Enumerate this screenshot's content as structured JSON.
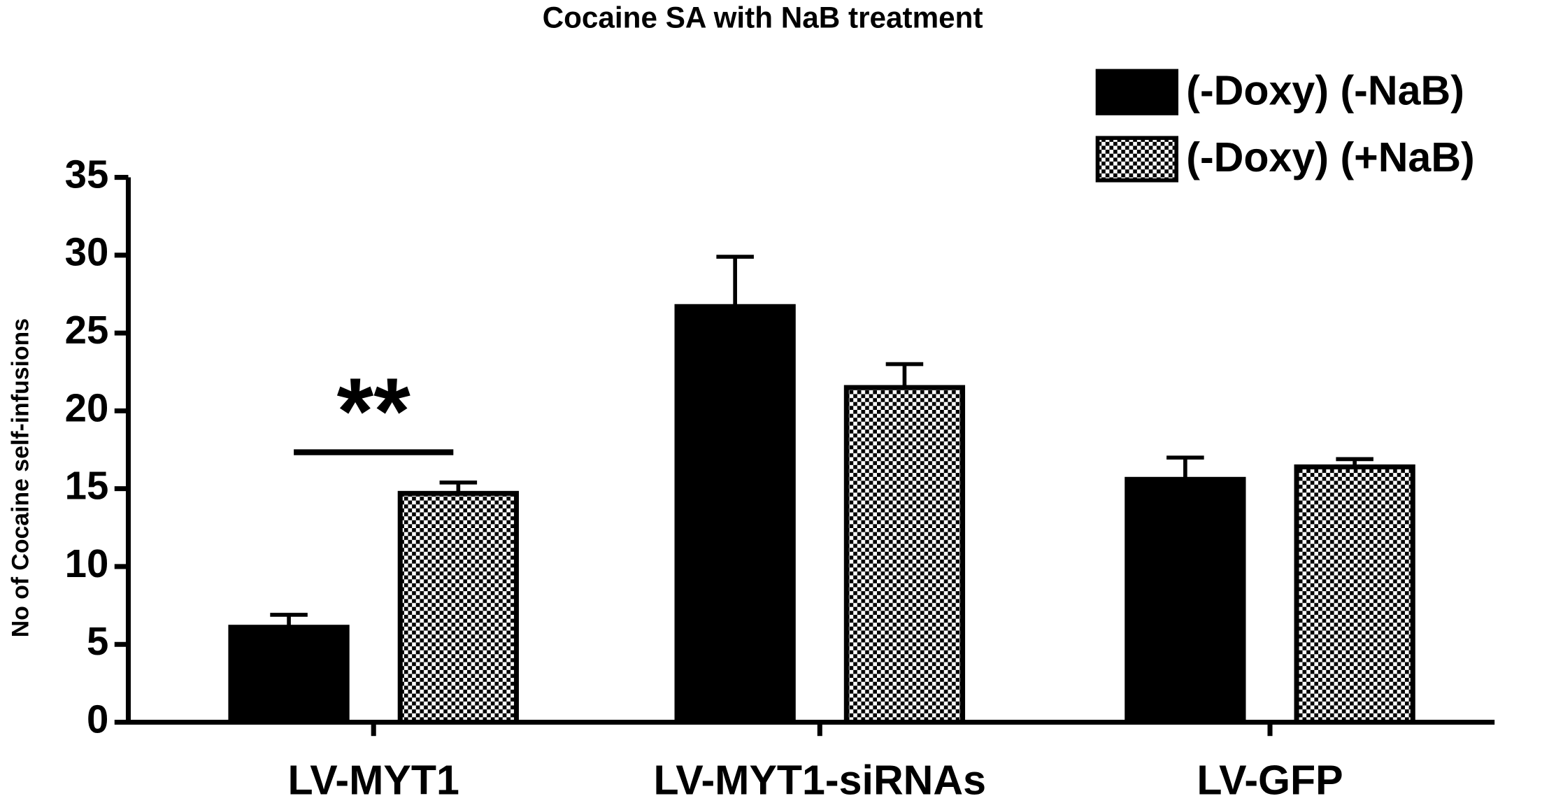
{
  "chart_data": {
    "type": "bar",
    "title": "Cocaine SA with NaB treatment",
    "y_label": "No of Cocaine self-infusions",
    "categories": [
      "LV-MYT1",
      "LV-MYT1-siRNAs",
      "LV-GFP"
    ],
    "series": [
      {
        "name": "(-Doxy) (-NaB)",
        "color": "#000000",
        "pattern": "solid",
        "values": [
          6.1,
          26.7,
          15.6
        ],
        "errors": [
          0.8,
          3.2,
          1.4
        ]
      },
      {
        "name": "(-Doxy) (+NaB)",
        "color": "#000000",
        "pattern": "checker",
        "values": [
          14.7,
          21.5,
          16.4
        ],
        "errors": [
          0.7,
          1.5,
          0.5
        ]
      }
    ],
    "ylim": [
      0,
      35
    ],
    "yticks": [
      0,
      5,
      10,
      15,
      20,
      25,
      30,
      35
    ],
    "annotation": "**"
  }
}
